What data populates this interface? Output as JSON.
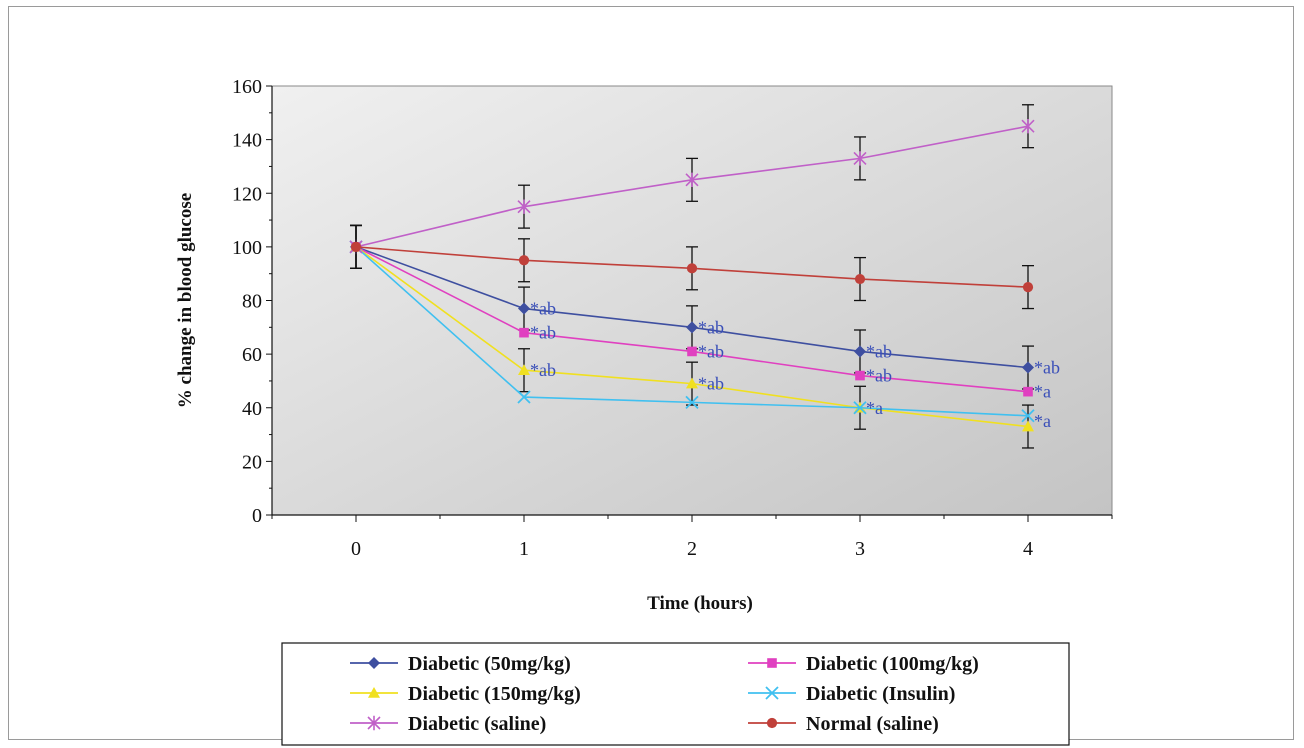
{
  "chart_data": {
    "type": "line",
    "title": "",
    "xlabel": "Time (hours)",
    "ylabel": "% change in blood glucose",
    "x": [
      0,
      1,
      2,
      3,
      4
    ],
    "xlim": [
      -0.5,
      4.5
    ],
    "ylim": [
      0,
      160
    ],
    "yticks": [
      0,
      20,
      40,
      60,
      80,
      100,
      120,
      140,
      160
    ],
    "grid": false,
    "legend_placement": "bottom",
    "series": [
      {
        "name": "Diabetic (50mg/kg)",
        "color": "#3e4fa0",
        "marker": "diamond",
        "values": [
          100,
          77,
          70,
          61,
          55
        ],
        "error": [
          8,
          8,
          8,
          8,
          8
        ]
      },
      {
        "name": "Diabetic (100mg/kg)",
        "color": "#e040c0",
        "marker": "square",
        "values": [
          100,
          68,
          61,
          52,
          46
        ],
        "error": [
          8,
          0,
          0,
          0,
          0
        ]
      },
      {
        "name": "Diabetic (150mg/kg)",
        "color": "#f0e020",
        "marker": "triangle",
        "values": [
          100,
          54,
          49,
          40,
          33
        ],
        "error": [
          8,
          8,
          8,
          8,
          8
        ]
      },
      {
        "name": "Diabetic (Insulin)",
        "color": "#40c0f0",
        "marker": "x",
        "values": [
          100,
          44,
          42,
          40,
          37
        ],
        "error": [
          0,
          0,
          0,
          0,
          0
        ]
      },
      {
        "name": "Diabetic (saline)",
        "color": "#c060c8",
        "marker": "star",
        "values": [
          100,
          115,
          125,
          133,
          145
        ],
        "error": [
          8,
          8,
          8,
          8,
          8
        ]
      },
      {
        "name": "Normal (saline)",
        "color": "#c0403a",
        "marker": "circle",
        "values": [
          100,
          95,
          92,
          88,
          85
        ],
        "error": [
          8,
          8,
          8,
          8,
          8
        ]
      }
    ],
    "annotations": [
      {
        "x": 1,
        "y": 77,
        "text": "*ab"
      },
      {
        "x": 1,
        "y": 68,
        "text": "*ab"
      },
      {
        "x": 1,
        "y": 54,
        "text": "*ab"
      },
      {
        "x": 2,
        "y": 70,
        "text": "*ab"
      },
      {
        "x": 2,
        "y": 61,
        "text": "*ab"
      },
      {
        "x": 2,
        "y": 49,
        "text": "*ab"
      },
      {
        "x": 3,
        "y": 61,
        "text": "*ab"
      },
      {
        "x": 3,
        "y": 52,
        "text": "*ab"
      },
      {
        "x": 3,
        "y": 40,
        "text": "*a"
      },
      {
        "x": 4,
        "y": 55,
        "text": "*ab"
      },
      {
        "x": 4,
        "y": 46,
        "text": "*a"
      },
      {
        "x": 4,
        "y": 35,
        "text": "*a"
      }
    ]
  }
}
